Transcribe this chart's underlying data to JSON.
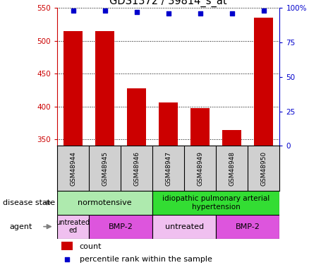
{
  "title": "GDS1372 / 39814_s_at",
  "samples": [
    "GSM48944",
    "GSM48945",
    "GSM48946",
    "GSM48947",
    "GSM48949",
    "GSM48948",
    "GSM48950"
  ],
  "counts": [
    515,
    515,
    428,
    406,
    397,
    364,
    535
  ],
  "percentiles": [
    98,
    98,
    97,
    96,
    96,
    96,
    98
  ],
  "ylim_left": [
    340,
    550
  ],
  "ylim_right": [
    0,
    100
  ],
  "yticks_left": [
    350,
    400,
    450,
    500,
    550
  ],
  "yticks_right": [
    0,
    25,
    50,
    75,
    100
  ],
  "bar_color": "#cc0000",
  "dot_color": "#0000cc",
  "normotensive_color": "#aeeaae",
  "ipah_color": "#33dd33",
  "untreated_color": "#f0c0f0",
  "bmp2_color": "#dd55dd",
  "sample_bg_color": "#d0d0d0",
  "left_axis_color": "#cc0000",
  "right_axis_color": "#0000cc"
}
